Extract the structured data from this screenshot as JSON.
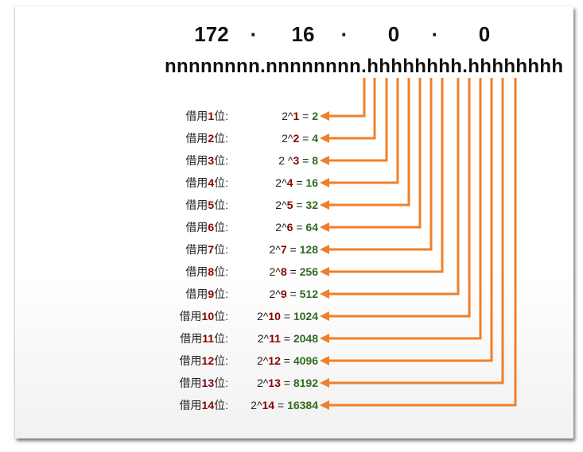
{
  "address": {
    "octets": [
      "172",
      "16",
      "0",
      "0"
    ],
    "separator": "·"
  },
  "mask_pattern": "nnnnnnnn.nnnnnnnn.hhhhhhhh.hhhhhhhh",
  "rows": [
    {
      "label_prefix": "借用",
      "bits": "1",
      "label_suffix": "位:",
      "base": "2^",
      "exponent": "1",
      "equals": " = ",
      "result": "2"
    },
    {
      "label_prefix": "借用",
      "bits": "2",
      "label_suffix": "位:",
      "base": "2^",
      "exponent": "2",
      "equals": " = ",
      "result": "4"
    },
    {
      "label_prefix": "借用",
      "bits": "3",
      "label_suffix": "位:",
      "base": "2 ^",
      "exponent": "3",
      "equals": " = ",
      "result": "8"
    },
    {
      "label_prefix": "借用",
      "bits": "4",
      "label_suffix": "位:",
      "base": "2^",
      "exponent": "4",
      "equals": " = ",
      "result": "16"
    },
    {
      "label_prefix": "借用",
      "bits": "5",
      "label_suffix": "位:",
      "base": "2^",
      "exponent": "5",
      "equals": " = ",
      "result": "32"
    },
    {
      "label_prefix": "借用",
      "bits": "6",
      "label_suffix": "位:",
      "base": "2^",
      "exponent": "6",
      "equals": " = ",
      "result": "64"
    },
    {
      "label_prefix": "借用",
      "bits": "7",
      "label_suffix": "位:",
      "base": "2^",
      "exponent": "7",
      "equals": " = ",
      "result": "128"
    },
    {
      "label_prefix": "借用",
      "bits": "8",
      "label_suffix": "位:",
      "base": "2^",
      "exponent": "8",
      "equals": " = ",
      "result": "256"
    },
    {
      "label_prefix": "借用",
      "bits": "9",
      "label_suffix": "位:",
      "base": "2^",
      "exponent": "9",
      "equals": " = ",
      "result": "512"
    },
    {
      "label_prefix": "借用",
      "bits": "10",
      "label_suffix": "位:",
      "base": "2^",
      "exponent": "10",
      "equals": " = ",
      "result": "1024"
    },
    {
      "label_prefix": "借用",
      "bits": "11",
      "label_suffix": "位:",
      "base": "2^",
      "exponent": "11",
      "equals": " = ",
      "result": "2048"
    },
    {
      "label_prefix": "借用",
      "bits": "12",
      "label_suffix": "位:",
      "base": "2^",
      "exponent": "12",
      "equals": " = ",
      "result": "4096"
    },
    {
      "label_prefix": "借用",
      "bits": "13",
      "label_suffix": "位:",
      "base": "2^",
      "exponent": "13",
      "equals": " = ",
      "result": "8192"
    },
    {
      "label_prefix": "借用",
      "bits": "14",
      "label_suffix": "位:",
      "base": "2^",
      "exponent": "14",
      "equals": " = ",
      "result": "16384"
    }
  ],
  "colors": {
    "arrow": "#f07f2a",
    "exponent": "#8b0000",
    "result": "#2e6b1f",
    "text": "#111111"
  }
}
